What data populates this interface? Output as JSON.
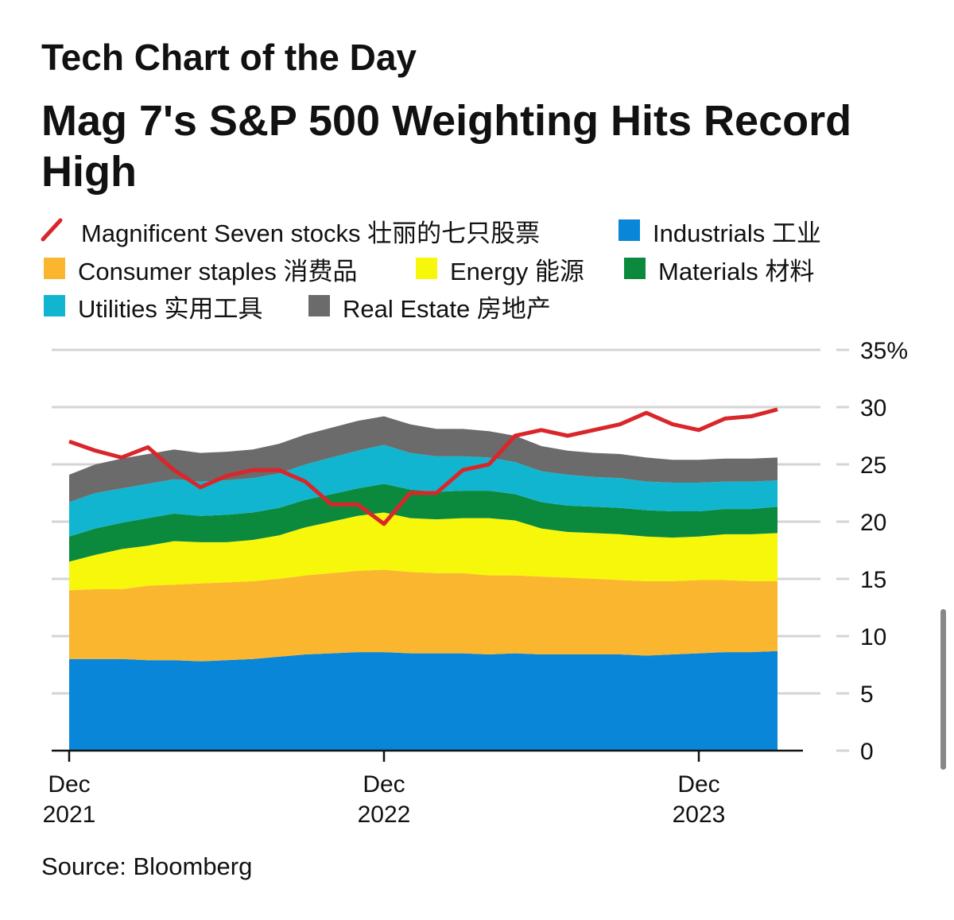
{
  "header": "Tech Chart of the Day",
  "chart_data": {
    "type": "area",
    "stacked": true,
    "title": [
      "Mag 7's S&P 500 Weighting Hits Record",
      "High"
    ],
    "source": "Source: Bloomberg",
    "x": [
      "2021-12",
      "2022-01",
      "2022-02",
      "2022-03",
      "2022-04",
      "2022-05",
      "2022-06",
      "2022-07",
      "2022-08",
      "2022-09",
      "2022-10",
      "2022-11",
      "2022-12",
      "2023-01",
      "2023-02",
      "2023-03",
      "2023-04",
      "2023-05",
      "2023-06",
      "2023-07",
      "2023-08",
      "2023-09",
      "2023-10",
      "2023-11",
      "2023-12",
      "2024-01",
      "2024-02",
      "2024-03"
    ],
    "xticks": [
      {
        "value": "2021-12",
        "label": [
          "Dec",
          "2021"
        ]
      },
      {
        "value": "2022-12",
        "label": [
          "Dec",
          "2022"
        ]
      },
      {
        "value": "2023-12",
        "label": [
          "Dec",
          "2023"
        ]
      }
    ],
    "ylim": [
      0,
      35
    ],
    "yticks": [
      0,
      5,
      10,
      15,
      20,
      25,
      30,
      {
        "value": 35,
        "label": "35%"
      }
    ],
    "grid": true,
    "series": [
      {
        "name": "Magnificent Seven stocks 壮丽的七只股票",
        "type": "line",
        "color": "#d9262b",
        "values": [
          27,
          26.2,
          25.6,
          26.5,
          24.5,
          23,
          24,
          24.5,
          24.5,
          23.5,
          21.5,
          21.5,
          19.8,
          22.5,
          22.5,
          24.5,
          25,
          27.5,
          28,
          27.5,
          28,
          28.5,
          29.5,
          28.5,
          28,
          29,
          29.2,
          29.8
        ]
      },
      {
        "name": "Industrials 工业",
        "type": "area",
        "color": "#0a86d8",
        "values": [
          8,
          8,
          8,
          7.9,
          7.9,
          7.8,
          7.9,
          8,
          8.2,
          8.4,
          8.5,
          8.6,
          8.6,
          8.5,
          8.5,
          8.5,
          8.4,
          8.5,
          8.4,
          8.4,
          8.4,
          8.4,
          8.3,
          8.4,
          8.5,
          8.6,
          8.6,
          8.7
        ]
      },
      {
        "name": "Consumer staples 消费品",
        "type": "area",
        "color": "#fbb62f",
        "values": [
          6,
          6.1,
          6.1,
          6.5,
          6.6,
          6.8,
          6.8,
          6.8,
          6.8,
          6.9,
          7,
          7.1,
          7.2,
          7.1,
          7,
          7,
          6.9,
          6.8,
          6.8,
          6.7,
          6.6,
          6.5,
          6.5,
          6.4,
          6.4,
          6.3,
          6.2,
          6.1
        ]
      },
      {
        "name": "Energy 能源",
        "type": "area",
        "color": "#f7f70c",
        "values": [
          2.5,
          3,
          3.5,
          3.5,
          3.8,
          3.6,
          3.5,
          3.6,
          3.8,
          4.2,
          4.5,
          4.8,
          5,
          4.7,
          4.7,
          4.8,
          5,
          4.8,
          4.2,
          4,
          4,
          4,
          3.9,
          3.8,
          3.8,
          4,
          4.1,
          4.2
        ]
      },
      {
        "name": "Materials 材料",
        "type": "area",
        "color": "#0b8a3e",
        "values": [
          2.2,
          2.3,
          2.3,
          2.4,
          2.4,
          2.3,
          2.4,
          2.4,
          2.4,
          2.4,
          2.4,
          2.4,
          2.5,
          2.5,
          2.4,
          2.4,
          2.4,
          2.3,
          2.3,
          2.3,
          2.3,
          2.3,
          2.3,
          2.3,
          2.2,
          2.2,
          2.2,
          2.3
        ]
      },
      {
        "name": "Utilities 实用工具",
        "type": "area",
        "color": "#12b5cf",
        "values": [
          3,
          3.1,
          3,
          3,
          3,
          3,
          3,
          3,
          3,
          3.1,
          3.2,
          3.3,
          3.4,
          3.2,
          3.1,
          3,
          2.9,
          2.8,
          2.7,
          2.7,
          2.6,
          2.6,
          2.5,
          2.5,
          2.5,
          2.4,
          2.4,
          2.3
        ]
      },
      {
        "name": "Real Estate 房地产",
        "type": "area",
        "color": "#6b6b6b",
        "values": [
          2.4,
          2.5,
          2.6,
          2.6,
          2.6,
          2.5,
          2.5,
          2.5,
          2.6,
          2.6,
          2.6,
          2.6,
          2.5,
          2.5,
          2.4,
          2.4,
          2.3,
          2.3,
          2.2,
          2.1,
          2.1,
          2.1,
          2.1,
          2.0,
          2.0,
          2.0,
          2.0,
          2.0
        ]
      }
    ]
  }
}
